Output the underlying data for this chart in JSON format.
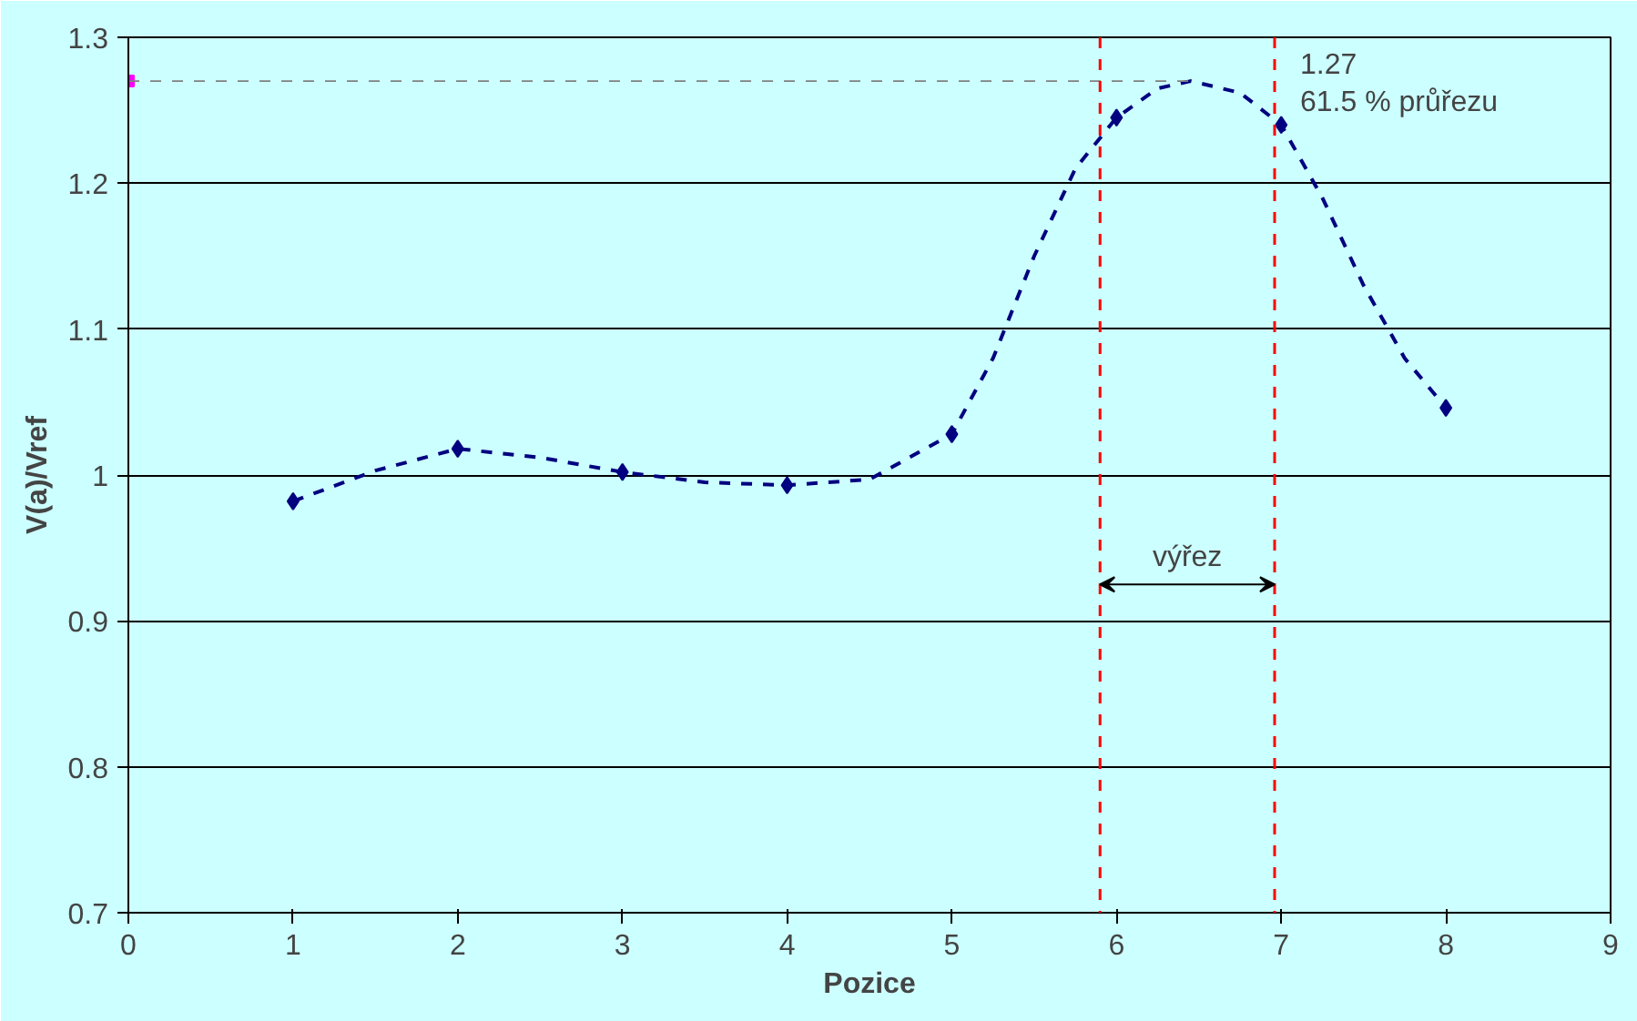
{
  "chart_data": {
    "type": "line",
    "xlabel": "Pozice",
    "ylabel": "V(a)/Vref",
    "xlim": [
      0,
      9
    ],
    "ylim": [
      0.7,
      1.3
    ],
    "xticks": [
      0,
      1,
      2,
      3,
      4,
      5,
      6,
      7,
      8,
      9
    ],
    "yticks": [
      0.7,
      0.8,
      0.9,
      1,
      1.1,
      1.2,
      1.3
    ],
    "grid": "y",
    "series": [
      {
        "type": "line",
        "color": "#000080",
        "line_style": "dashed",
        "marker": "none",
        "x": [
          1,
          1.5,
          2,
          2.5,
          3,
          3.5,
          4,
          4.5,
          5,
          5.25,
          5.5,
          5.75,
          6,
          6.25,
          6.45,
          6.75,
          7,
          7.25,
          7.5,
          7.75,
          8
        ],
        "values": [
          0.982,
          1.003,
          1.018,
          1.012,
          1.002,
          0.995,
          0.993,
          0.997,
          1.028,
          1.08,
          1.15,
          1.21,
          1.245,
          1.265,
          1.27,
          1.262,
          1.24,
          1.19,
          1.13,
          1.08,
          1.046
        ]
      },
      {
        "type": "scatter",
        "color": "#000080",
        "marker": "diamond",
        "x": [
          1,
          2,
          3,
          4,
          5,
          6,
          7,
          8
        ],
        "values": [
          0.982,
          1.018,
          1.002,
          0.993,
          1.028,
          1.245,
          1.24,
          1.046
        ]
      },
      {
        "type": "scatter",
        "color": "#ff00ff",
        "marker": "square",
        "x": [
          0
        ],
        "values": [
          1.27
        ]
      }
    ],
    "ref_lines": [
      {
        "axis": "x",
        "value": 5.9,
        "color": "#ff0000",
        "line_style": "dashed"
      },
      {
        "axis": "x",
        "value": 6.96,
        "color": "#ff0000",
        "line_style": "dashed"
      },
      {
        "axis": "y",
        "value": 1.27,
        "color": "#808080",
        "line_style": "dashed"
      }
    ],
    "annotations": [
      "1.27",
      "61.5 % průřezu",
      "výřez"
    ]
  }
}
